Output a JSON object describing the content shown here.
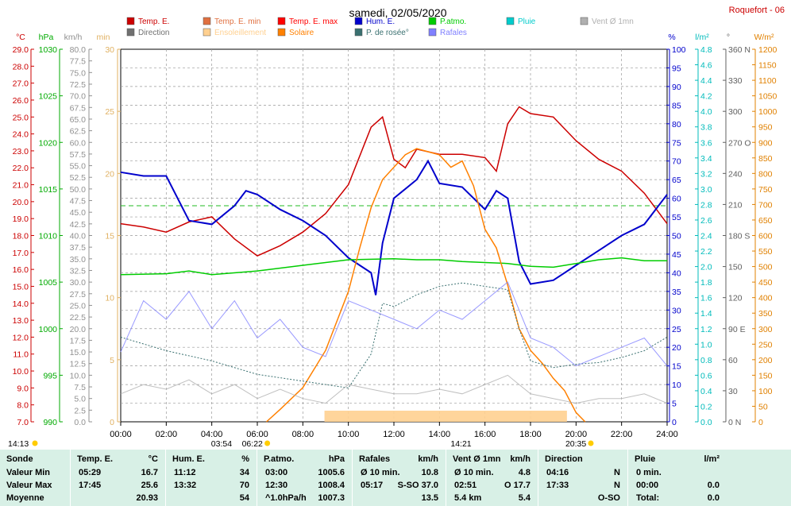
{
  "header": {
    "title": "samedi, 02/05/2020",
    "station": "Roquefort - 06"
  },
  "legend": [
    {
      "label": "Temp. E.",
      "color": "#cc0000"
    },
    {
      "label": "Temp. E. min",
      "color": "#e07040"
    },
    {
      "label": "Temp. E. max",
      "color": "#ff0000"
    },
    {
      "label": "Hum. E.",
      "color": "#0000cc"
    },
    {
      "label": "P.atmo.",
      "color": "#00cc00"
    },
    {
      "label": "Pluie",
      "color": "#00cccc"
    },
    {
      "label": "Vent Ø 1mn",
      "color": "#b0b0b0"
    },
    {
      "label": "Direction",
      "color": "#707070"
    },
    {
      "label": "Ensoleillement",
      "color": "#ffd090"
    },
    {
      "label": "Solaire",
      "color": "#ff8000"
    },
    {
      "label": "P. de rosée°",
      "color": "#3a7070"
    },
    {
      "label": "Rafales",
      "color": "#8080ff"
    }
  ],
  "axes": {
    "temp": {
      "unit": "°C",
      "ticks": [
        "29.0",
        "28.0",
        "27.0",
        "26.0",
        "25.0",
        "24.0",
        "23.0",
        "22.0",
        "21.0",
        "20.0",
        "19.0",
        "18.0",
        "17.0",
        "16.0",
        "15.0",
        "14.0",
        "13.0",
        "12.0",
        "11.0",
        "10.0",
        "9.0",
        "8.0",
        "7.0"
      ],
      "color": "#cc0000"
    },
    "press": {
      "unit": "hPa",
      "ticks": [
        "1030",
        "1025",
        "1020",
        "1015",
        "1010",
        "1005",
        "1000",
        "995",
        "990"
      ],
      "color": "#00aa00"
    },
    "wind": {
      "unit": "km/h",
      "ticks": [
        "80.0",
        "77.5",
        "75.0",
        "72.5",
        "70.0",
        "67.5",
        "65.0",
        "62.5",
        "60.0",
        "57.5",
        "55.0",
        "52.5",
        "50.0",
        "47.5",
        "45.0",
        "42.5",
        "40.0",
        "37.5",
        "35.0",
        "32.5",
        "30.0",
        "27.5",
        "25.0",
        "22.5",
        "20.0",
        "17.5",
        "15.0",
        "12.5",
        "10.0",
        "7.5",
        "5.0",
        "2.5",
        "0.0"
      ],
      "color": "#909090"
    },
    "min": {
      "unit": "min",
      "ticks": [
        "30",
        "25",
        "20",
        "15",
        "10",
        "5",
        "0"
      ],
      "color": "#e0b060"
    },
    "hum": {
      "unit": "%",
      "ticks": [
        "100",
        "95",
        "90",
        "85",
        "80",
        "75",
        "70",
        "65",
        "60",
        "55",
        "50",
        "45",
        "40",
        "35",
        "30",
        "25",
        "20",
        "15",
        "10",
        "5",
        "0"
      ],
      "color": "#0000cc"
    },
    "rain": {
      "unit": "l/m²",
      "ticks": [
        "4.8",
        "4.6",
        "4.4",
        "4.2",
        "4.0",
        "3.8",
        "3.6",
        "3.4",
        "3.2",
        "3.0",
        "2.8",
        "2.6",
        "2.4",
        "2.2",
        "2.0",
        "1.8",
        "1.6",
        "1.4",
        "1.2",
        "1.0",
        "0.8",
        "0.6",
        "0.4",
        "0.2",
        "0.0"
      ],
      "color": "#00bbbb"
    },
    "dir": {
      "unit": "°",
      "ticks": [
        "360 N",
        "330",
        "300",
        "270 O",
        "240",
        "210",
        "180 S",
        "150",
        "120",
        "90 E",
        "60",
        "30",
        "0 N"
      ],
      "color": "#606060"
    },
    "solar": {
      "unit": "W/m²",
      "ticks": [
        "1200",
        "1150",
        "1100",
        "1050",
        "1000",
        "950",
        "900",
        "850",
        "800",
        "750",
        "700",
        "650",
        "600",
        "550",
        "500",
        "450",
        "400",
        "350",
        "300",
        "250",
        "200",
        "150",
        "100",
        "50",
        "0"
      ],
      "color": "#e08000"
    },
    "time_ticks": [
      "00:00",
      "02:00",
      "04:00",
      "06:00",
      "08:00",
      "10:00",
      "12:00",
      "14:00",
      "16:00",
      "18:00",
      "20:00",
      "22:00",
      "24:00"
    ]
  },
  "markers": {
    "tide_left": "14:13",
    "moonset": "03:54",
    "sunrise": "06:22",
    "moonrise": "14:21",
    "sunset": "20:35"
  },
  "chart_data": {
    "type": "line",
    "x_unit": "hour",
    "xlim": [
      0,
      24
    ],
    "series": [
      {
        "name": "Temp. E.",
        "unit": "°C",
        "color": "#cc0000",
        "x": [
          0,
          1,
          2,
          3,
          4,
          5,
          6,
          7,
          8,
          9,
          10,
          11,
          11.5,
          12,
          12.5,
          13,
          14,
          15,
          16,
          16.5,
          17,
          17.5,
          18,
          19,
          20,
          21,
          22,
          23,
          24
        ],
        "y": [
          18.7,
          18.5,
          18.2,
          18.8,
          19.1,
          17.8,
          16.8,
          17.4,
          18.2,
          19.3,
          21.0,
          24.4,
          25.0,
          22.5,
          22.0,
          23.1,
          22.8,
          22.8,
          22.6,
          21.8,
          24.6,
          25.6,
          25.2,
          25.0,
          23.6,
          22.5,
          21.8,
          20.5,
          18.7
        ]
      },
      {
        "name": "Hum. E.",
        "unit": "%",
        "color": "#0000cc",
        "x": [
          0,
          1,
          2,
          3,
          4,
          5,
          5.5,
          6,
          7,
          8,
          9,
          10,
          10.5,
          11,
          11.2,
          11.5,
          12,
          13,
          13.5,
          14,
          15,
          16,
          16.5,
          17,
          17.5,
          18,
          19,
          20,
          21,
          22,
          23,
          24
        ],
        "y": [
          67,
          66,
          66,
          54,
          53,
          58,
          62,
          61,
          57,
          54,
          50,
          44,
          42,
          40,
          34,
          48,
          60,
          65,
          70,
          64,
          63,
          57,
          62,
          60,
          43,
          37,
          38,
          42,
          46,
          50,
          53,
          61
        ]
      },
      {
        "name": "P.atmo.",
        "unit": "hPa",
        "color": "#00cc00",
        "x": [
          0,
          2,
          3,
          4,
          6,
          8,
          10,
          12,
          13,
          14,
          15,
          16,
          17,
          18,
          19,
          20,
          21,
          22,
          23,
          24
        ],
        "y": [
          1005.8,
          1005.9,
          1006.2,
          1005.8,
          1006.2,
          1006.8,
          1007.4,
          1007.5,
          1007.4,
          1007.4,
          1007.2,
          1007.1,
          1007.0,
          1006.7,
          1006.6,
          1007.0,
          1007.4,
          1007.6,
          1007.3,
          1007.3
        ]
      },
      {
        "name": "Solaire",
        "unit": "W/m²",
        "color": "#ff8000",
        "x": [
          6.4,
          7,
          8,
          9,
          10,
          10.5,
          11,
          11.5,
          12,
          12.5,
          13,
          13.5,
          14,
          14.5,
          15,
          15.5,
          16,
          16.5,
          17,
          17.5,
          18,
          18.5,
          19,
          19.5,
          20,
          20.4
        ],
        "y": [
          0,
          40,
          110,
          230,
          420,
          560,
          690,
          780,
          820,
          860,
          880,
          870,
          860,
          820,
          840,
          760,
          620,
          560,
          440,
          300,
          230,
          190,
          140,
          100,
          30,
          0
        ]
      },
      {
        "name": "P. de rosée°",
        "unit": "°C",
        "color": "#3a7070",
        "x": [
          0,
          2,
          4,
          6,
          8,
          9,
          10,
          11,
          11.5,
          12,
          13,
          14,
          15,
          16,
          17,
          17.5,
          18,
          19,
          20,
          21,
          22,
          23,
          24
        ],
        "y": [
          12.0,
          11.2,
          10.6,
          9.8,
          9.4,
          9.2,
          9.0,
          11.0,
          14.0,
          13.8,
          14.5,
          15.0,
          15.2,
          15.0,
          14.8,
          12.5,
          10.6,
          10.2,
          10.4,
          10.5,
          10.8,
          11.2,
          12.0
        ]
      },
      {
        "name": "Rafales",
        "unit": "km/h",
        "color": "#8080ff",
        "x": [
          0,
          1,
          2,
          3,
          4,
          5,
          6,
          7,
          8,
          9,
          10,
          11,
          12,
          13,
          14,
          15,
          16,
          17,
          18,
          19,
          20,
          21,
          22,
          23,
          24
        ],
        "y": [
          15,
          26,
          22,
          28,
          20,
          26,
          18,
          22,
          16,
          14,
          26,
          24,
          22,
          20,
          24,
          22,
          26,
          30,
          18,
          16,
          12,
          14,
          16,
          18,
          12
        ]
      },
      {
        "name": "Vent Ø 1mn",
        "unit": "km/h",
        "color": "#b0b0b0",
        "x": [
          0,
          1,
          2,
          3,
          4,
          5,
          6,
          7,
          8,
          9,
          10,
          11,
          12,
          13,
          14,
          15,
          16,
          17,
          18,
          19,
          20,
          21,
          22,
          23,
          24
        ],
        "y": [
          6,
          8,
          7,
          9,
          6,
          8,
          5,
          7,
          5,
          4,
          8,
          7,
          6,
          6,
          7,
          6,
          8,
          10,
          6,
          5,
          4,
          5,
          5,
          6,
          4
        ]
      }
    ]
  },
  "table": {
    "headers": [
      {
        "label": "Sonde",
        "unit": ""
      },
      {
        "label": "Temp. E.",
        "unit": "°C"
      },
      {
        "label": "Hum. E.",
        "unit": "%"
      },
      {
        "label": "P.atmo.",
        "unit": "hPa"
      },
      {
        "label": "Rafales",
        "unit": "km/h"
      },
      {
        "label": "Vent Ø 1mn",
        "unit": "km/h"
      },
      {
        "label": "Direction",
        "unit": ""
      },
      {
        "label": "Pluie",
        "unit": "l/m²"
      }
    ],
    "rows": [
      {
        "label": "Valeur Min",
        "temp": [
          "05:29",
          "16.7"
        ],
        "hum": [
          "11:12",
          "34"
        ],
        "press": [
          "03:00",
          "1005.6"
        ],
        "gust": [
          "Ø 10 min.",
          "10.8"
        ],
        "wind": [
          "Ø 10 min.",
          "4.8"
        ],
        "dir": [
          "04:16",
          "N"
        ],
        "rain": [
          "0 min.",
          ""
        ]
      },
      {
        "label": "Valeur Max",
        "temp": [
          "17:45",
          "25.6"
        ],
        "hum": [
          "13:32",
          "70"
        ],
        "press": [
          "12:30",
          "1008.4"
        ],
        "gust": [
          "05:17",
          "S-SO 37.0"
        ],
        "wind": [
          "02:51",
          "O 17.7"
        ],
        "dir": [
          "17:33",
          "N"
        ],
        "rain": [
          "00:00",
          "0.0"
        ]
      },
      {
        "label": "Moyenne",
        "temp": [
          "",
          "20.93"
        ],
        "hum": [
          "",
          "54"
        ],
        "press": [
          "^1.0hPa/h",
          "1007.3"
        ],
        "gust": [
          "",
          "13.5"
        ],
        "wind": [
          "5.4 km",
          "5.4"
        ],
        "dir": [
          "",
          "O-SO"
        ],
        "rain": [
          "Total:",
          "0.0"
        ]
      }
    ]
  }
}
